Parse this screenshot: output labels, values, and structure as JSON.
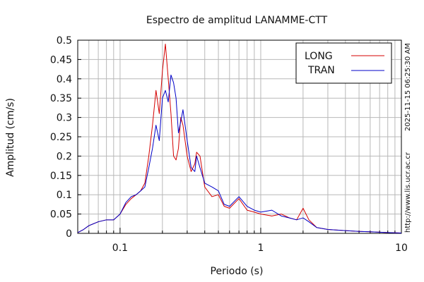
{
  "chart_data": {
    "type": "line",
    "title": "Espectro de amplitud LANAMME-CTT",
    "xlabel": "Periodo (s)",
    "ylabel": "Amplitud (cm/s)",
    "x_scale": "log",
    "xlim": [
      0.05,
      10
    ],
    "ylim": [
      0,
      0.5
    ],
    "grid": true,
    "legend_position": "top-right",
    "x_ticks": [
      {
        "value": 0.1,
        "label": "0.1"
      },
      {
        "value": 1,
        "label": "1"
      },
      {
        "value": 10,
        "label": "10"
      }
    ],
    "y_ticks": [
      {
        "value": 0,
        "label": "0"
      },
      {
        "value": 0.05,
        "label": "0.05"
      },
      {
        "value": 0.1,
        "label": "0.1"
      },
      {
        "value": 0.15,
        "label": "0.15"
      },
      {
        "value": 0.2,
        "label": "0.2"
      },
      {
        "value": 0.25,
        "label": "0.25"
      },
      {
        "value": 0.3,
        "label": "0.3"
      },
      {
        "value": 0.35,
        "label": "0.35"
      },
      {
        "value": 0.4,
        "label": "0.4"
      },
      {
        "value": 0.45,
        "label": "0.45"
      },
      {
        "value": 0.5,
        "label": "0.5"
      }
    ],
    "series": [
      {
        "name": "LONG",
        "color": "#d40000",
        "points": [
          [
            0.05,
            0.002
          ],
          [
            0.055,
            0.01
          ],
          [
            0.06,
            0.02
          ],
          [
            0.07,
            0.03
          ],
          [
            0.08,
            0.035
          ],
          [
            0.09,
            0.035
          ],
          [
            0.1,
            0.05
          ],
          [
            0.11,
            0.075
          ],
          [
            0.12,
            0.09
          ],
          [
            0.13,
            0.1
          ],
          [
            0.14,
            0.11
          ],
          [
            0.15,
            0.13
          ],
          [
            0.16,
            0.2
          ],
          [
            0.17,
            0.28
          ],
          [
            0.18,
            0.37
          ],
          [
            0.19,
            0.31
          ],
          [
            0.2,
            0.42
          ],
          [
            0.21,
            0.49
          ],
          [
            0.22,
            0.4
          ],
          [
            0.23,
            0.31
          ],
          [
            0.24,
            0.2
          ],
          [
            0.25,
            0.19
          ],
          [
            0.26,
            0.22
          ],
          [
            0.27,
            0.3
          ],
          [
            0.28,
            0.28
          ],
          [
            0.3,
            0.2
          ],
          [
            0.32,
            0.16
          ],
          [
            0.34,
            0.18
          ],
          [
            0.35,
            0.21
          ],
          [
            0.37,
            0.2
          ],
          [
            0.4,
            0.12
          ],
          [
            0.45,
            0.095
          ],
          [
            0.5,
            0.1
          ],
          [
            0.55,
            0.07
          ],
          [
            0.6,
            0.065
          ],
          [
            0.7,
            0.09
          ],
          [
            0.8,
            0.06
          ],
          [
            0.9,
            0.055
          ],
          [
            1.0,
            0.05
          ],
          [
            1.2,
            0.045
          ],
          [
            1.4,
            0.05
          ],
          [
            1.6,
            0.04
          ],
          [
            1.8,
            0.035
          ],
          [
            2.0,
            0.065
          ],
          [
            2.2,
            0.035
          ],
          [
            2.5,
            0.015
          ],
          [
            3.0,
            0.01
          ],
          [
            4.0,
            0.007
          ],
          [
            5.0,
            0.005
          ],
          [
            6.0,
            0.004
          ],
          [
            8.0,
            0.002
          ],
          [
            10.0,
            0.001
          ]
        ]
      },
      {
        "name": "TRAN",
        "color": "#0000c8",
        "points": [
          [
            0.05,
            0.002
          ],
          [
            0.055,
            0.01
          ],
          [
            0.06,
            0.02
          ],
          [
            0.07,
            0.03
          ],
          [
            0.08,
            0.035
          ],
          [
            0.09,
            0.035
          ],
          [
            0.1,
            0.05
          ],
          [
            0.11,
            0.08
          ],
          [
            0.12,
            0.095
          ],
          [
            0.13,
            0.1
          ],
          [
            0.14,
            0.11
          ],
          [
            0.15,
            0.12
          ],
          [
            0.16,
            0.17
          ],
          [
            0.17,
            0.22
          ],
          [
            0.18,
            0.28
          ],
          [
            0.19,
            0.24
          ],
          [
            0.2,
            0.35
          ],
          [
            0.21,
            0.37
          ],
          [
            0.22,
            0.34
          ],
          [
            0.23,
            0.41
          ],
          [
            0.24,
            0.39
          ],
          [
            0.25,
            0.35
          ],
          [
            0.26,
            0.26
          ],
          [
            0.27,
            0.29
          ],
          [
            0.28,
            0.32
          ],
          [
            0.3,
            0.24
          ],
          [
            0.32,
            0.17
          ],
          [
            0.34,
            0.16
          ],
          [
            0.35,
            0.2
          ],
          [
            0.37,
            0.17
          ],
          [
            0.4,
            0.13
          ],
          [
            0.45,
            0.12
          ],
          [
            0.5,
            0.11
          ],
          [
            0.55,
            0.075
          ],
          [
            0.6,
            0.07
          ],
          [
            0.7,
            0.095
          ],
          [
            0.8,
            0.07
          ],
          [
            0.9,
            0.06
          ],
          [
            1.0,
            0.055
          ],
          [
            1.2,
            0.06
          ],
          [
            1.4,
            0.045
          ],
          [
            1.6,
            0.04
          ],
          [
            1.8,
            0.035
          ],
          [
            2.0,
            0.04
          ],
          [
            2.2,
            0.03
          ],
          [
            2.5,
            0.015
          ],
          [
            3.0,
            0.01
          ],
          [
            4.0,
            0.007
          ],
          [
            5.0,
            0.005
          ],
          [
            6.0,
            0.004
          ],
          [
            8.0,
            0.002
          ],
          [
            10.0,
            0.001
          ]
        ]
      }
    ]
  },
  "side_text": {
    "timestamp": "2025-11-15 06:25:30 AM",
    "url": "http://www.lis.ucr.ac.cr"
  }
}
